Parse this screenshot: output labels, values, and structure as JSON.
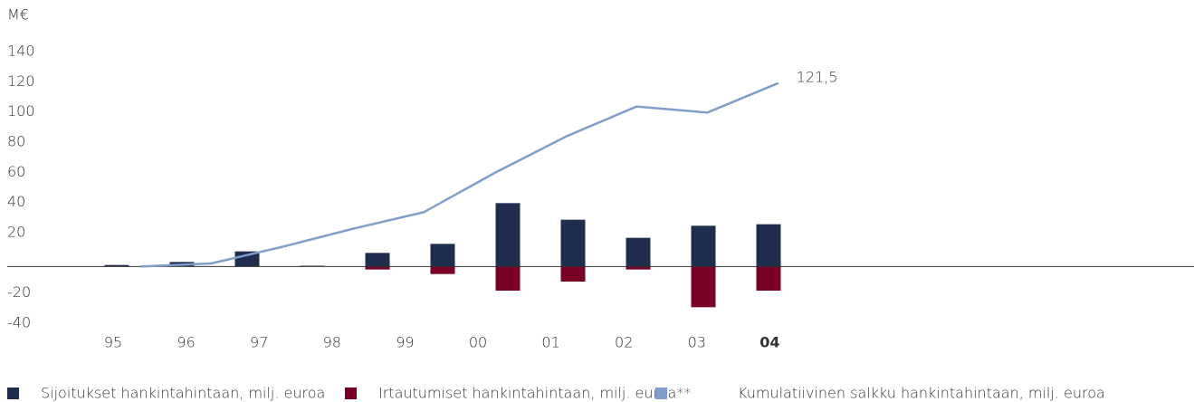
{
  "chart_data": {
    "type": "bar_line",
    "y_label": "M€",
    "categories": [
      null,
      "95",
      "96",
      "97",
      "98",
      "99",
      "00",
      "01",
      "02",
      "03",
      "04"
    ],
    "ylim": [
      -40,
      140
    ],
    "yticks": [
      -40,
      -20,
      20,
      40,
      60,
      80,
      100,
      120,
      140
    ],
    "series": [
      {
        "name": "Sijoitukset hankintahintaan, milj. euroa",
        "type": "bar",
        "color": "#1f2d4e",
        "values": [
          1,
          3,
          10,
          0.5,
          9,
          15,
          42,
          31,
          19,
          27,
          28
        ]
      },
      {
        "name": "Irtautumiset hankintahintaan, milj. euroa**",
        "type": "bar",
        "color": "#7a0026",
        "values": [
          0,
          0,
          0,
          0,
          -2,
          -5,
          -16,
          -10,
          -2,
          -27,
          -16
        ]
      },
      {
        "name": "Kumulatiivinen salkku hankintahintaan, milj. euroa",
        "type": "line",
        "color": "#7f9ec9",
        "values": [
          null,
          0,
          2,
          13,
          25,
          36,
          62,
          86,
          106,
          102,
          121.5
        ],
        "value_labels": [
          null,
          null,
          null,
          null,
          null,
          null,
          null,
          null,
          null,
          null,
          "121,5"
        ]
      }
    ]
  }
}
